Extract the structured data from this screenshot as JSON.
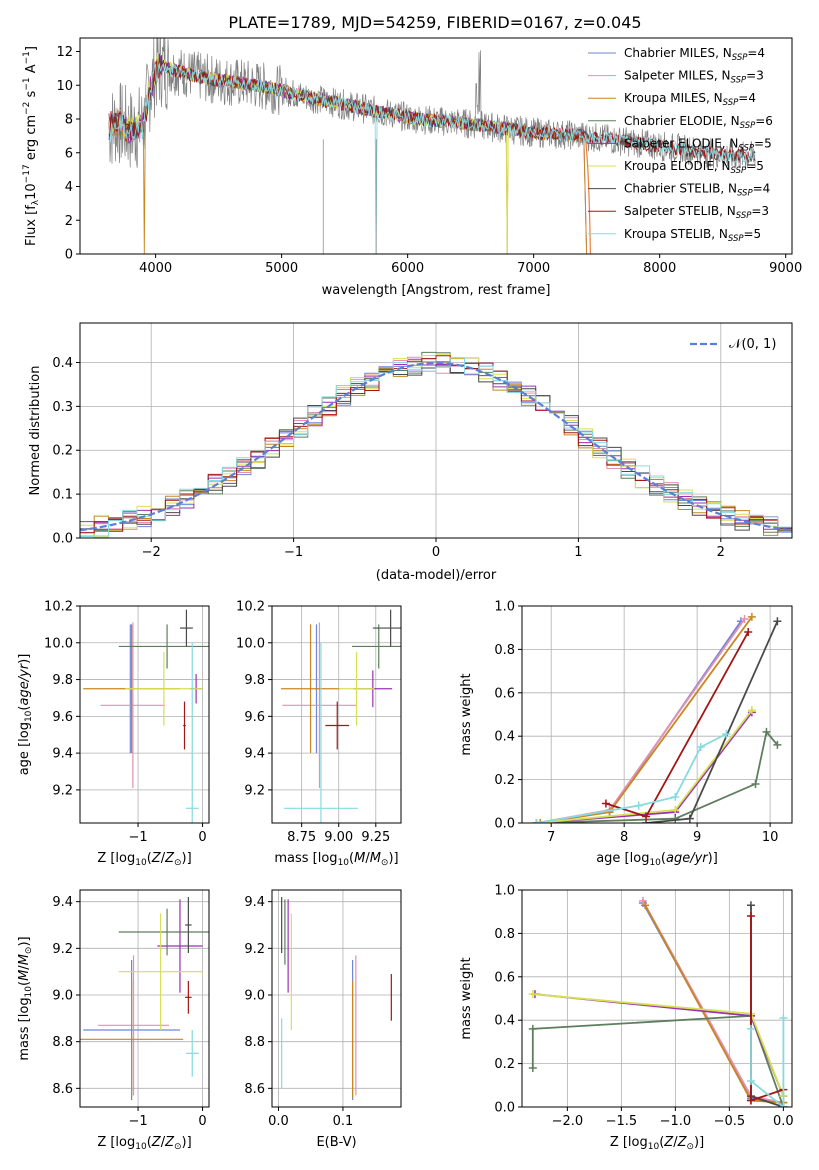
{
  "figure_title": "PLATE=1789, MJD=54259, FIBERID=0167, z=0.045",
  "series_colors": {
    "chabrier_miles": "#6f86d6",
    "salpeter_miles": "#e48fb4",
    "kroupa_miles": "#c8861e",
    "chabrier_elodie": "#5e7e5e",
    "salpeter_elodie": "#9b30b5",
    "kroupa_elodie": "#d6e052",
    "chabrier_stelib": "#4a4a4a",
    "salpeter_stelib": "#a31616",
    "kroupa_stelib": "#86dae0",
    "data": "#808080",
    "normal": "#5b7fd6",
    "orange": "#ee7e3e"
  },
  "chart_data": [
    {
      "id": "spectrum",
      "type": "line",
      "xlabel": "wavelength [Angstrom, rest frame]",
      "ylabel": "Flux [f_λ10^-17 erg cm^-2 s^-1 A^-1]",
      "xlim": [
        3400,
        9050
      ],
      "ylim": [
        0,
        12.8
      ],
      "xticks": [
        4000,
        5000,
        6000,
        7000,
        8000,
        9000
      ],
      "yticks": [
        0,
        2,
        4,
        6,
        8,
        10,
        12
      ],
      "legend_position": "top-right",
      "legend": [
        {
          "base": "Chabrier MILES, N",
          "sub": "SSP",
          "tail": "=4",
          "key": "chabrier_miles"
        },
        {
          "base": "Salpeter MILES, N",
          "sub": "SSP",
          "tail": "=3",
          "key": "salpeter_miles"
        },
        {
          "base": "Kroupa MILES, N",
          "sub": "SSP",
          "tail": "=4",
          "key": "kroupa_miles"
        },
        {
          "base": "Chabrier ELODIE, N",
          "sub": "SSP",
          "tail": "=6",
          "key": "chabrier_elodie"
        },
        {
          "base": "Salpeter ELODIE, N",
          "sub": "SSP",
          "tail": "=5",
          "key": "salpeter_elodie"
        },
        {
          "base": "Kroupa ELODIE, N",
          "sub": "SSP",
          "tail": "=5",
          "key": "kroupa_elodie"
        },
        {
          "base": "Chabrier STELIB, N",
          "sub": "SSP",
          "tail": "=4",
          "key": "chabrier_stelib"
        },
        {
          "base": "Salpeter STELIB, N",
          "sub": "SSP",
          "tail": "=3",
          "key": "salpeter_stelib"
        },
        {
          "base": "Kroupa STELIB, N",
          "sub": "SSP",
          "tail": "=5",
          "key": "kroupa_stelib"
        }
      ],
      "continuum": [
        [
          3630,
          7.4
        ],
        [
          3700,
          7.8
        ],
        [
          3800,
          7.3
        ],
        [
          3900,
          7.6
        ],
        [
          3950,
          9.6
        ],
        [
          4000,
          10.9
        ],
        [
          4050,
          11.2
        ],
        [
          4100,
          11.0
        ],
        [
          4200,
          10.8
        ],
        [
          4300,
          10.6
        ],
        [
          4400,
          10.4
        ],
        [
          4600,
          10.2
        ],
        [
          4800,
          10.0
        ],
        [
          5000,
          9.7
        ],
        [
          5200,
          9.3
        ],
        [
          5400,
          9.0
        ],
        [
          5600,
          8.7
        ],
        [
          5800,
          8.4
        ],
        [
          6000,
          8.1
        ],
        [
          6200,
          7.9
        ],
        [
          6400,
          7.8
        ],
        [
          6600,
          7.6
        ],
        [
          6800,
          7.4
        ],
        [
          7000,
          7.2
        ],
        [
          7200,
          7.1
        ],
        [
          7400,
          7.0
        ],
        [
          7600,
          6.8
        ],
        [
          7800,
          6.6
        ],
        [
          8000,
          6.4
        ],
        [
          8200,
          6.2
        ],
        [
          8400,
          6.0
        ],
        [
          8600,
          5.8
        ],
        [
          8760,
          5.8
        ]
      ]
    },
    {
      "id": "residuals",
      "type": "histogram",
      "xlabel": "(data-model)/error",
      "ylabel": "Normed distribution",
      "xlim": [
        -2.5,
        2.5
      ],
      "ylim": [
        0,
        0.49
      ],
      "xticks": [
        -2,
        -1,
        0,
        1,
        2
      ],
      "yticks": [
        0.0,
        0.1,
        0.2,
        0.3,
        0.4
      ],
      "legend_label": "𝒩(0, 1)",
      "legend_position": "top-right",
      "bin_width": 0.1,
      "reference_curve": "standard normal N(0,1)"
    },
    {
      "id": "age_vs_Z",
      "type": "errorbar",
      "xlabel": "Z [log10(Z/Z_⊙)]",
      "ylabel": "age  [log10(age/yr)]",
      "xlim": [
        -1.9,
        0.1
      ],
      "ylim": [
        9.02,
        10.2
      ],
      "xticks": [
        -1,
        0
      ],
      "yticks": [
        9.2,
        9.4,
        9.6,
        9.8,
        10.0,
        10.2
      ],
      "points": [
        {
          "key": "chabrier_miles",
          "x": -1.12,
          "xerr": 0.03,
          "y": 9.75,
          "yerr": 0.35
        },
        {
          "key": "salpeter_miles",
          "x": -1.08,
          "xerr": 0.5,
          "y": 9.66,
          "yerr": 0.45
        },
        {
          "key": "kroupa_miles",
          "x": -1.1,
          "xerr": 0.75,
          "y": 9.75,
          "yerr": 0.35
        },
        {
          "key": "chabrier_elodie",
          "x": -0.55,
          "xerr": 0.75,
          "y": 9.98,
          "yerr": 0.12
        },
        {
          "key": "salpeter_elodie",
          "x": -0.1,
          "xerr": 0.1,
          "y": 9.75,
          "yerr": 0.08
        },
        {
          "key": "kroupa_elodie",
          "x": -0.6,
          "xerr": 0.6,
          "y": 9.75,
          "yerr": 0.2
        },
        {
          "key": "chabrier_stelib",
          "x": -0.25,
          "xerr": 0.1,
          "y": 10.08,
          "yerr": 0.1
        },
        {
          "key": "salpeter_stelib",
          "x": -0.28,
          "xerr": 0.02,
          "y": 9.55,
          "yerr": 0.13
        },
        {
          "key": "kroupa_stelib",
          "x": -0.16,
          "xerr": 0.1,
          "y": 9.1,
          "yerr": 0.9
        }
      ]
    },
    {
      "id": "age_vs_mass",
      "type": "errorbar",
      "xlabel": "mass [log10(M/M_⊙)]",
      "ylabel": "",
      "xlim": [
        8.55,
        9.42
      ],
      "ylim": [
        9.02,
        10.2
      ],
      "xticks": [
        8.75,
        9.0,
        9.25
      ],
      "yticks": [
        9.2,
        9.4,
        9.6,
        9.8,
        10.0,
        10.2
      ],
      "points": [
        {
          "key": "chabrier_miles",
          "x": 8.85,
          "xerr": 0.01,
          "y": 9.75,
          "yerr": 0.35
        },
        {
          "key": "salpeter_miles",
          "x": 8.87,
          "xerr": 0.25,
          "y": 9.66,
          "yerr": 0.45
        },
        {
          "key": "kroupa_miles",
          "x": 8.81,
          "xerr": 0.2,
          "y": 9.75,
          "yerr": 0.35
        },
        {
          "key": "chabrier_elodie",
          "x": 9.27,
          "xerr": 0.18,
          "y": 9.98,
          "yerr": 0.12
        },
        {
          "key": "salpeter_elodie",
          "x": 9.23,
          "xerr": 0.13,
          "y": 9.75,
          "yerr": 0.1
        },
        {
          "key": "kroupa_elodie",
          "x": 9.12,
          "xerr": 0.12,
          "y": 9.75,
          "yerr": 0.2
        },
        {
          "key": "chabrier_stelib",
          "x": 9.35,
          "xerr": 0.12,
          "y": 10.08,
          "yerr": 0.1
        },
        {
          "key": "salpeter_stelib",
          "x": 8.99,
          "xerr": 0.08,
          "y": 9.55,
          "yerr": 0.13
        },
        {
          "key": "kroupa_stelib",
          "x": 8.88,
          "xerr": 0.25,
          "y": 9.1,
          "yerr": 0.9
        }
      ]
    },
    {
      "id": "massweight_vs_age",
      "type": "line",
      "xlabel": "age  [log10(age/yr)]",
      "ylabel": "mass weight",
      "xlim": [
        6.6,
        10.3
      ],
      "ylim": [
        0,
        1.0
      ],
      "xticks": [
        7,
        8,
        9,
        10
      ],
      "yticks": [
        0.0,
        0.2,
        0.4,
        0.6,
        0.8,
        1.0
      ],
      "series": [
        {
          "key": "chabrier_miles",
          "x": [
            6.8,
            7.8,
            9.6
          ],
          "y": [
            0.0,
            0.05,
            0.93
          ]
        },
        {
          "key": "salpeter_miles",
          "x": [
            6.8,
            7.8,
            9.65
          ],
          "y": [
            0.0,
            0.06,
            0.94
          ]
        },
        {
          "key": "kroupa_miles",
          "x": [
            6.85,
            7.8,
            9.75
          ],
          "y": [
            0.0,
            0.05,
            0.95
          ]
        },
        {
          "key": "chabrier_elodie",
          "x": [
            6.8,
            8.7,
            9.8,
            9.95,
            10.1
          ],
          "y": [
            0.0,
            0.02,
            0.18,
            0.42,
            0.36
          ]
        },
        {
          "key": "salpeter_elodie",
          "x": [
            6.8,
            8.7,
            9.75
          ],
          "y": [
            0.0,
            0.05,
            0.51
          ]
        },
        {
          "key": "kroupa_elodie",
          "x": [
            6.8,
            8.7,
            9.75
          ],
          "y": [
            0.0,
            0.06,
            0.52
          ]
        },
        {
          "key": "chabrier_stelib",
          "x": [
            8.3,
            8.9,
            10.1
          ],
          "y": [
            0.0,
            0.02,
            0.93
          ]
        },
        {
          "key": "salpeter_stelib",
          "x": [
            7.75,
            8.3,
            9.7
          ],
          "y": [
            0.09,
            0.03,
            0.88
          ]
        },
        {
          "key": "kroupa_stelib",
          "x": [
            6.8,
            8.2,
            8.7,
            9.05,
            9.4
          ],
          "y": [
            0.0,
            0.08,
            0.12,
            0.35,
            0.41
          ]
        }
      ]
    },
    {
      "id": "mass_vs_Z",
      "type": "errorbar",
      "xlabel": "Z [log10(Z/Z_⊙)]",
      "ylabel": "mass [log10(M/M_⊙)]",
      "xlim": [
        -1.9,
        0.1
      ],
      "ylim": [
        8.52,
        9.45
      ],
      "xticks": [
        -1,
        0
      ],
      "yticks": [
        8.6,
        8.8,
        9.0,
        9.2,
        9.4
      ],
      "points": [
        {
          "key": "chabrier_miles",
          "x": -1.1,
          "xerr": 0.75,
          "y": 8.85,
          "yerr": 0.3
        },
        {
          "key": "salpeter_miles",
          "x": -1.07,
          "xerr": 0.55,
          "y": 8.87,
          "yerr": 0.3
        },
        {
          "key": "kroupa_miles",
          "x": -1.1,
          "xerr": 0.8,
          "y": 8.81,
          "yerr": 0.25
        },
        {
          "key": "chabrier_elodie",
          "x": -0.55,
          "xerr": 0.75,
          "y": 9.27,
          "yerr": 0.1
        },
        {
          "key": "salpeter_elodie",
          "x": -0.35,
          "xerr": 0.35,
          "y": 9.21,
          "yerr": 0.2
        },
        {
          "key": "kroupa_elodie",
          "x": -0.65,
          "xerr": 0.65,
          "y": 9.1,
          "yerr": 0.25
        },
        {
          "key": "chabrier_stelib",
          "x": -0.22,
          "xerr": 0.05,
          "y": 9.3,
          "yerr": 0.12
        },
        {
          "key": "salpeter_stelib",
          "x": -0.22,
          "xerr": 0.05,
          "y": 8.99,
          "yerr": 0.07
        },
        {
          "key": "kroupa_stelib",
          "x": -0.16,
          "xerr": 0.1,
          "y": 8.75,
          "yerr": 0.1
        }
      ]
    },
    {
      "id": "mass_vs_ebv",
      "type": "errorbar",
      "xlabel": "E(B-V)",
      "ylabel": "",
      "xlim": [
        -0.01,
        0.19
      ],
      "ylim": [
        8.52,
        9.45
      ],
      "xticks": [
        0.0,
        0.1
      ],
      "yticks": [
        8.6,
        8.8,
        9.0,
        9.2,
        9.4
      ],
      "points": [
        {
          "key": "chabrier_miles",
          "x": 0.115,
          "xerr": 0,
          "y": 8.85,
          "yerr": 0.3
        },
        {
          "key": "salpeter_miles",
          "x": 0.12,
          "xerr": 0,
          "y": 8.87,
          "yerr": 0.3
        },
        {
          "key": "kroupa_miles",
          "x": 0.115,
          "xerr": 0,
          "y": 8.81,
          "yerr": 0.25
        },
        {
          "key": "chabrier_elodie",
          "x": 0.01,
          "xerr": 0,
          "y": 9.27,
          "yerr": 0.14
        },
        {
          "key": "salpeter_elodie",
          "x": 0.015,
          "xerr": 0,
          "y": 9.21,
          "yerr": 0.2
        },
        {
          "key": "kroupa_elodie",
          "x": 0.02,
          "xerr": 0,
          "y": 9.1,
          "yerr": 0.25
        },
        {
          "key": "chabrier_stelib",
          "x": 0.005,
          "xerr": 0,
          "y": 9.3,
          "yerr": 0.12
        },
        {
          "key": "salpeter_stelib",
          "x": 0.175,
          "xerr": 0,
          "y": 8.99,
          "yerr": 0.1
        },
        {
          "key": "kroupa_stelib",
          "x": 0.005,
          "xerr": 0,
          "y": 8.75,
          "yerr": 0.15
        }
      ]
    },
    {
      "id": "massweight_vs_Z",
      "type": "line",
      "xlabel": "Z [log10(Z/Z_⊙)]",
      "ylabel": "mass weight",
      "xlim": [
        -2.42,
        0.08
      ],
      "ylim": [
        0,
        1.0
      ],
      "xticks": [
        -2.0,
        -1.5,
        -1.0,
        -0.5,
        0.0
      ],
      "yticks": [
        0.0,
        0.2,
        0.4,
        0.6,
        0.8,
        1.0
      ],
      "series": [
        {
          "key": "chabrier_miles",
          "x": [
            -1.3,
            -0.3,
            0.0
          ],
          "y": [
            0.94,
            0.04,
            0.02
          ]
        },
        {
          "key": "salpeter_miles",
          "x": [
            -1.3,
            -0.3,
            0.0
          ],
          "y": [
            0.95,
            0.05,
            0.02
          ]
        },
        {
          "key": "kroupa_miles",
          "x": [
            -1.28,
            -0.3,
            0.0
          ],
          "y": [
            0.93,
            0.03,
            0.02
          ]
        },
        {
          "key": "chabrier_elodie",
          "x": [
            -2.32,
            -2.32,
            -0.3,
            0.0
          ],
          "y": [
            0.18,
            0.36,
            0.42,
            0.0
          ]
        },
        {
          "key": "salpeter_elodie",
          "x": [
            -2.3,
            -0.3,
            0.0
          ],
          "y": [
            0.52,
            0.42,
            0.05
          ]
        },
        {
          "key": "kroupa_elodie",
          "x": [
            -2.32,
            -0.3,
            0.0
          ],
          "y": [
            0.52,
            0.43,
            0.05
          ]
        },
        {
          "key": "chabrier_stelib",
          "x": [
            -0.3,
            -0.3,
            0.0
          ],
          "y": [
            0.93,
            0.05,
            0.0
          ]
        },
        {
          "key": "salpeter_stelib",
          "x": [
            -0.3,
            -0.3,
            0.0
          ],
          "y": [
            0.88,
            0.03,
            0.08
          ]
        },
        {
          "key": "kroupa_stelib",
          "x": [
            -0.3,
            -0.3,
            0.0,
            0.0
          ],
          "y": [
            0.36,
            0.12,
            0.0,
            0.41
          ]
        }
      ]
    }
  ]
}
